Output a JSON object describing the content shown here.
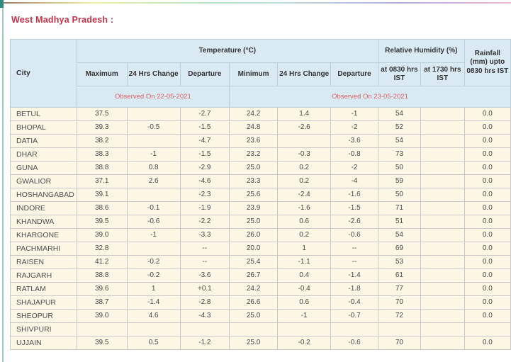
{
  "page": {
    "title": "West Madhya Pradesh :"
  },
  "colors": {
    "title_red": "#c43348",
    "observed_red": "#dd5f5f",
    "header_bg": "#d9eaf3",
    "row_bg": "#fbf7e4",
    "cell_border": "#c9c9c9",
    "header_border": "#b9cfda",
    "left_edge_teal": "#97ccc0",
    "left_edge_dark_teal": "#2c8c80"
  },
  "table": {
    "header": {
      "city": "City",
      "temperature_group": "Temperature (°C)",
      "humidity_group": "Relative Humidity (%)",
      "rainfall": "Rainfall (mm) upto 0830 hrs IST",
      "maximum": "Maximum",
      "change_24hrs_max": "24 Hrs Change",
      "departure_max": "Departure",
      "minimum": "Minimum",
      "change_24hrs_min": "24 Hrs Change",
      "departure_min": "Departure",
      "at_0830": "at 0830 hrs IST",
      "at_1730": "at 1730 hrs IST",
      "observed_max": "Observed On 22-05-2021",
      "observed_min": "Observed On 23-05-2021"
    },
    "rows": [
      {
        "city": "BETUL",
        "values": [
          "37.5",
          "",
          "-2.7",
          "24.2",
          "1.4",
          "-1",
          "54",
          "",
          "0.0"
        ]
      },
      {
        "city": "BHOPAL",
        "values": [
          "39.3",
          "-0.5",
          "-1.5",
          "24.8",
          "-2.6",
          "-2",
          "52",
          "",
          "0.0"
        ]
      },
      {
        "city": "DATIA",
        "values": [
          "38.2",
          "",
          "-4.7",
          "23.6",
          "",
          "-3.6",
          "54",
          "",
          "0.0"
        ]
      },
      {
        "city": "DHAR",
        "values": [
          "38.3",
          "-1",
          "-1.5",
          "23.2",
          "-0.3",
          "-0.8",
          "73",
          "",
          "0.0"
        ]
      },
      {
        "city": "GUNA",
        "values": [
          "38.8",
          "0.8",
          "-2.9",
          "25.0",
          "0.2",
          "-2",
          "50",
          "",
          "0.0"
        ]
      },
      {
        "city": "GWALIOR",
        "values": [
          "37.1",
          "2.6",
          "-4.6",
          "23.3",
          "0.2",
          "-4",
          "59",
          "",
          "0.0"
        ]
      },
      {
        "city": "HOSHANGABAD",
        "values": [
          "39.1",
          "",
          "-2.3",
          "25.6",
          "-2.4",
          "-1.6",
          "50",
          "",
          "0.0"
        ]
      },
      {
        "city": "INDORE",
        "values": [
          "38.6",
          "-0.1",
          "-1.9",
          "23.9",
          "-1.6",
          "-1.5",
          "71",
          "",
          "0.0"
        ]
      },
      {
        "city": "KHANDWA",
        "values": [
          "39.5",
          "-0.6",
          "-2.2",
          "25.0",
          "0.6",
          "-2.6",
          "51",
          "",
          "0.0"
        ]
      },
      {
        "city": "KHARGONE",
        "values": [
          "39.0",
          "-1",
          "-3.3",
          "26.0",
          "0.2",
          "-0.6",
          "54",
          "",
          "0.0"
        ]
      },
      {
        "city": "PACHMARHI",
        "values": [
          "32.8",
          "",
          "--",
          "20.0",
          "1",
          "--",
          "69",
          "",
          "0.0"
        ]
      },
      {
        "city": "RAISEN",
        "values": [
          "41.2",
          "-0.2",
          "--",
          "25.4",
          "-1.1",
          "--",
          "53",
          "",
          "0.0"
        ]
      },
      {
        "city": "RAJGARH",
        "values": [
          "38.8",
          "-0.2",
          "-3.6",
          "26.7",
          "0.4",
          "-1.4",
          "61",
          "",
          "0.0"
        ]
      },
      {
        "city": "RATLAM",
        "values": [
          "39.6",
          "1",
          "+0.1",
          "24.2",
          "-0.4",
          "-1.8",
          "77",
          "",
          "0.0"
        ]
      },
      {
        "city": "SHAJAPUR",
        "values": [
          "38.7",
          "-1.4",
          "-2.8",
          "26.6",
          "0.6",
          "-0.4",
          "70",
          "",
          "0.0"
        ]
      },
      {
        "city": "SHEOPUR",
        "values": [
          "39.0",
          "4.6",
          "-4.3",
          "25.0",
          "-1",
          "-0.7",
          "72",
          "",
          "0.0"
        ]
      },
      {
        "city": "SHIVPURI",
        "values": [
          "",
          "",
          "",
          "",
          "",
          "",
          "",
          "",
          ""
        ]
      },
      {
        "city": "UJJAIN",
        "values": [
          "39.5",
          "0.5",
          "-1.2",
          "25.0",
          "-0.2",
          "-0.6",
          "70",
          "",
          "0.0"
        ]
      }
    ]
  }
}
